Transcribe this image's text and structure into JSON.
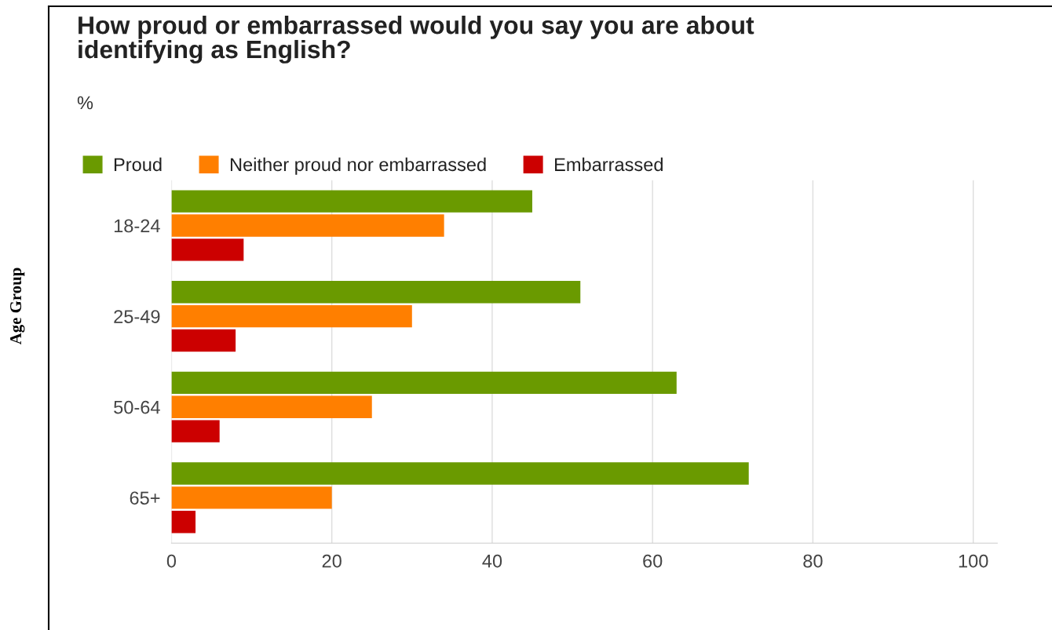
{
  "chart_data": {
    "type": "bar",
    "orientation": "horizontal",
    "title": "How proud or embarrassed would you say you are about\nidentifying as English?",
    "subtitle": "%",
    "annotations": [
      "Age Group"
    ],
    "categories": [
      "18-24",
      "25-49",
      "50-64",
      "65+"
    ],
    "series": [
      {
        "name": "Proud",
        "color": "#6a9a00",
        "values": [
          45,
          51,
          63,
          72
        ]
      },
      {
        "name": "Neither proud nor embarrassed",
        "color": "#ff7f00",
        "values": [
          34,
          30,
          25,
          20
        ]
      },
      {
        "name": "Embarrassed",
        "color": "#cc0000",
        "values": [
          9,
          8,
          6,
          3
        ]
      }
    ],
    "xlim": [
      0,
      103
    ],
    "xticks": [
      0,
      20,
      40,
      60,
      80,
      100
    ],
    "grid": "x",
    "legend": "top"
  }
}
